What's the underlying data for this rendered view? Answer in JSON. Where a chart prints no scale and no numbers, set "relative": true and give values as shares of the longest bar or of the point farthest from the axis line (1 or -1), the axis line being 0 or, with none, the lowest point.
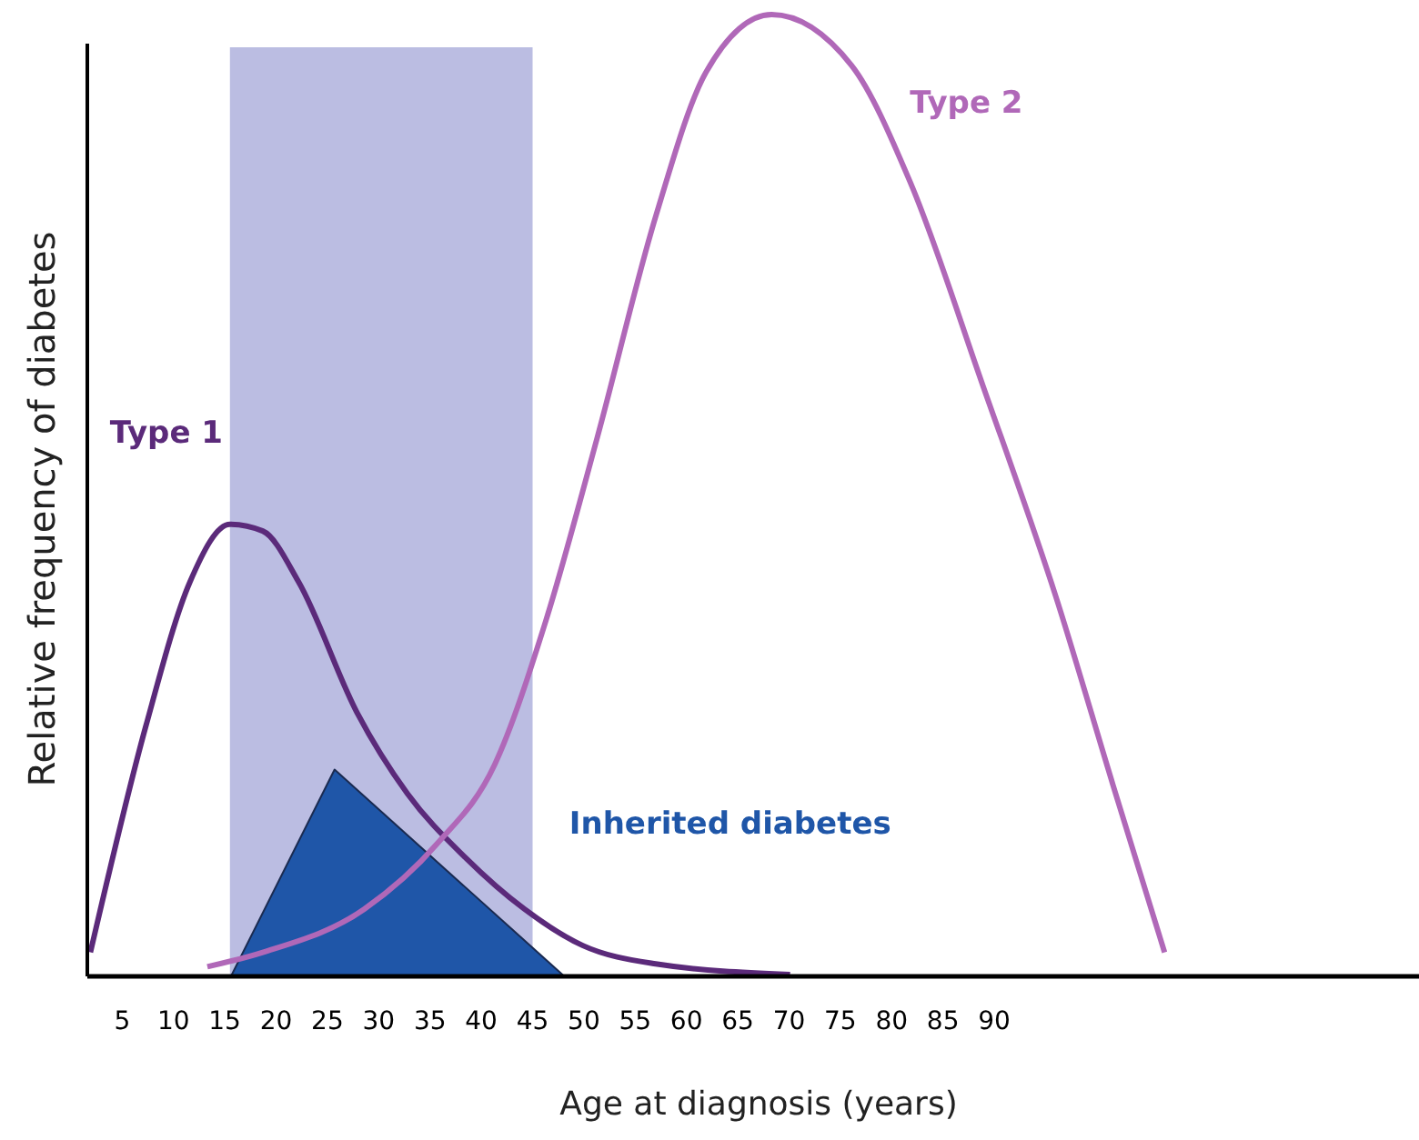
{
  "chart_data": {
    "type": "line",
    "xlabel": "Age at diagnosis (years)",
    "ylabel": "Relative frequency of diabetes",
    "relative": true,
    "xlim": [
      1.6,
      131.4
    ],
    "xticks": [
      5,
      10,
      15,
      20,
      25,
      30,
      35,
      40,
      45,
      50,
      55,
      60,
      65,
      70,
      75,
      80,
      85,
      90
    ],
    "grid": false,
    "bands": [
      {
        "axis": "x",
        "from": 15.5,
        "to": 45,
        "color": "#bbbde2"
      }
    ],
    "series": [
      {
        "name": "Type 1",
        "color": "#5b2a7a",
        "x": [
          1.9,
          7.3,
          11.6,
          15.5,
          18.7,
          22.2,
          27.9,
          32.8,
          38.5,
          44.2,
          49.9,
          57,
          70.1
        ],
        "values": [
          0.025,
          0.26,
          0.41,
          0.47,
          0.463,
          0.41,
          0.274,
          0.19,
          0.123,
          0.07,
          0.032,
          0.013,
          0.002
        ]
      },
      {
        "name": "Type 2",
        "color": "#b068b8",
        "x": [
          13.3,
          18.7,
          28.6,
          35.7,
          41.3,
          46.3,
          51.3,
          57,
          61.9,
          68.3,
          76.1,
          81.8,
          88.9,
          96,
          101.6,
          106.6
        ],
        "values": [
          0.01,
          0.025,
          0.07,
          0.138,
          0.22,
          0.37,
          0.56,
          0.79,
          0.94,
          1.0,
          0.947,
          0.826,
          0.614,
          0.395,
          0.198,
          0.025
        ]
      },
      {
        "name": "Inherited diabetes",
        "type": "area",
        "color": "#1f56a8",
        "x": [
          15.6,
          25.7,
          48.1
        ],
        "values": [
          0,
          0.215,
          0
        ]
      }
    ]
  }
}
